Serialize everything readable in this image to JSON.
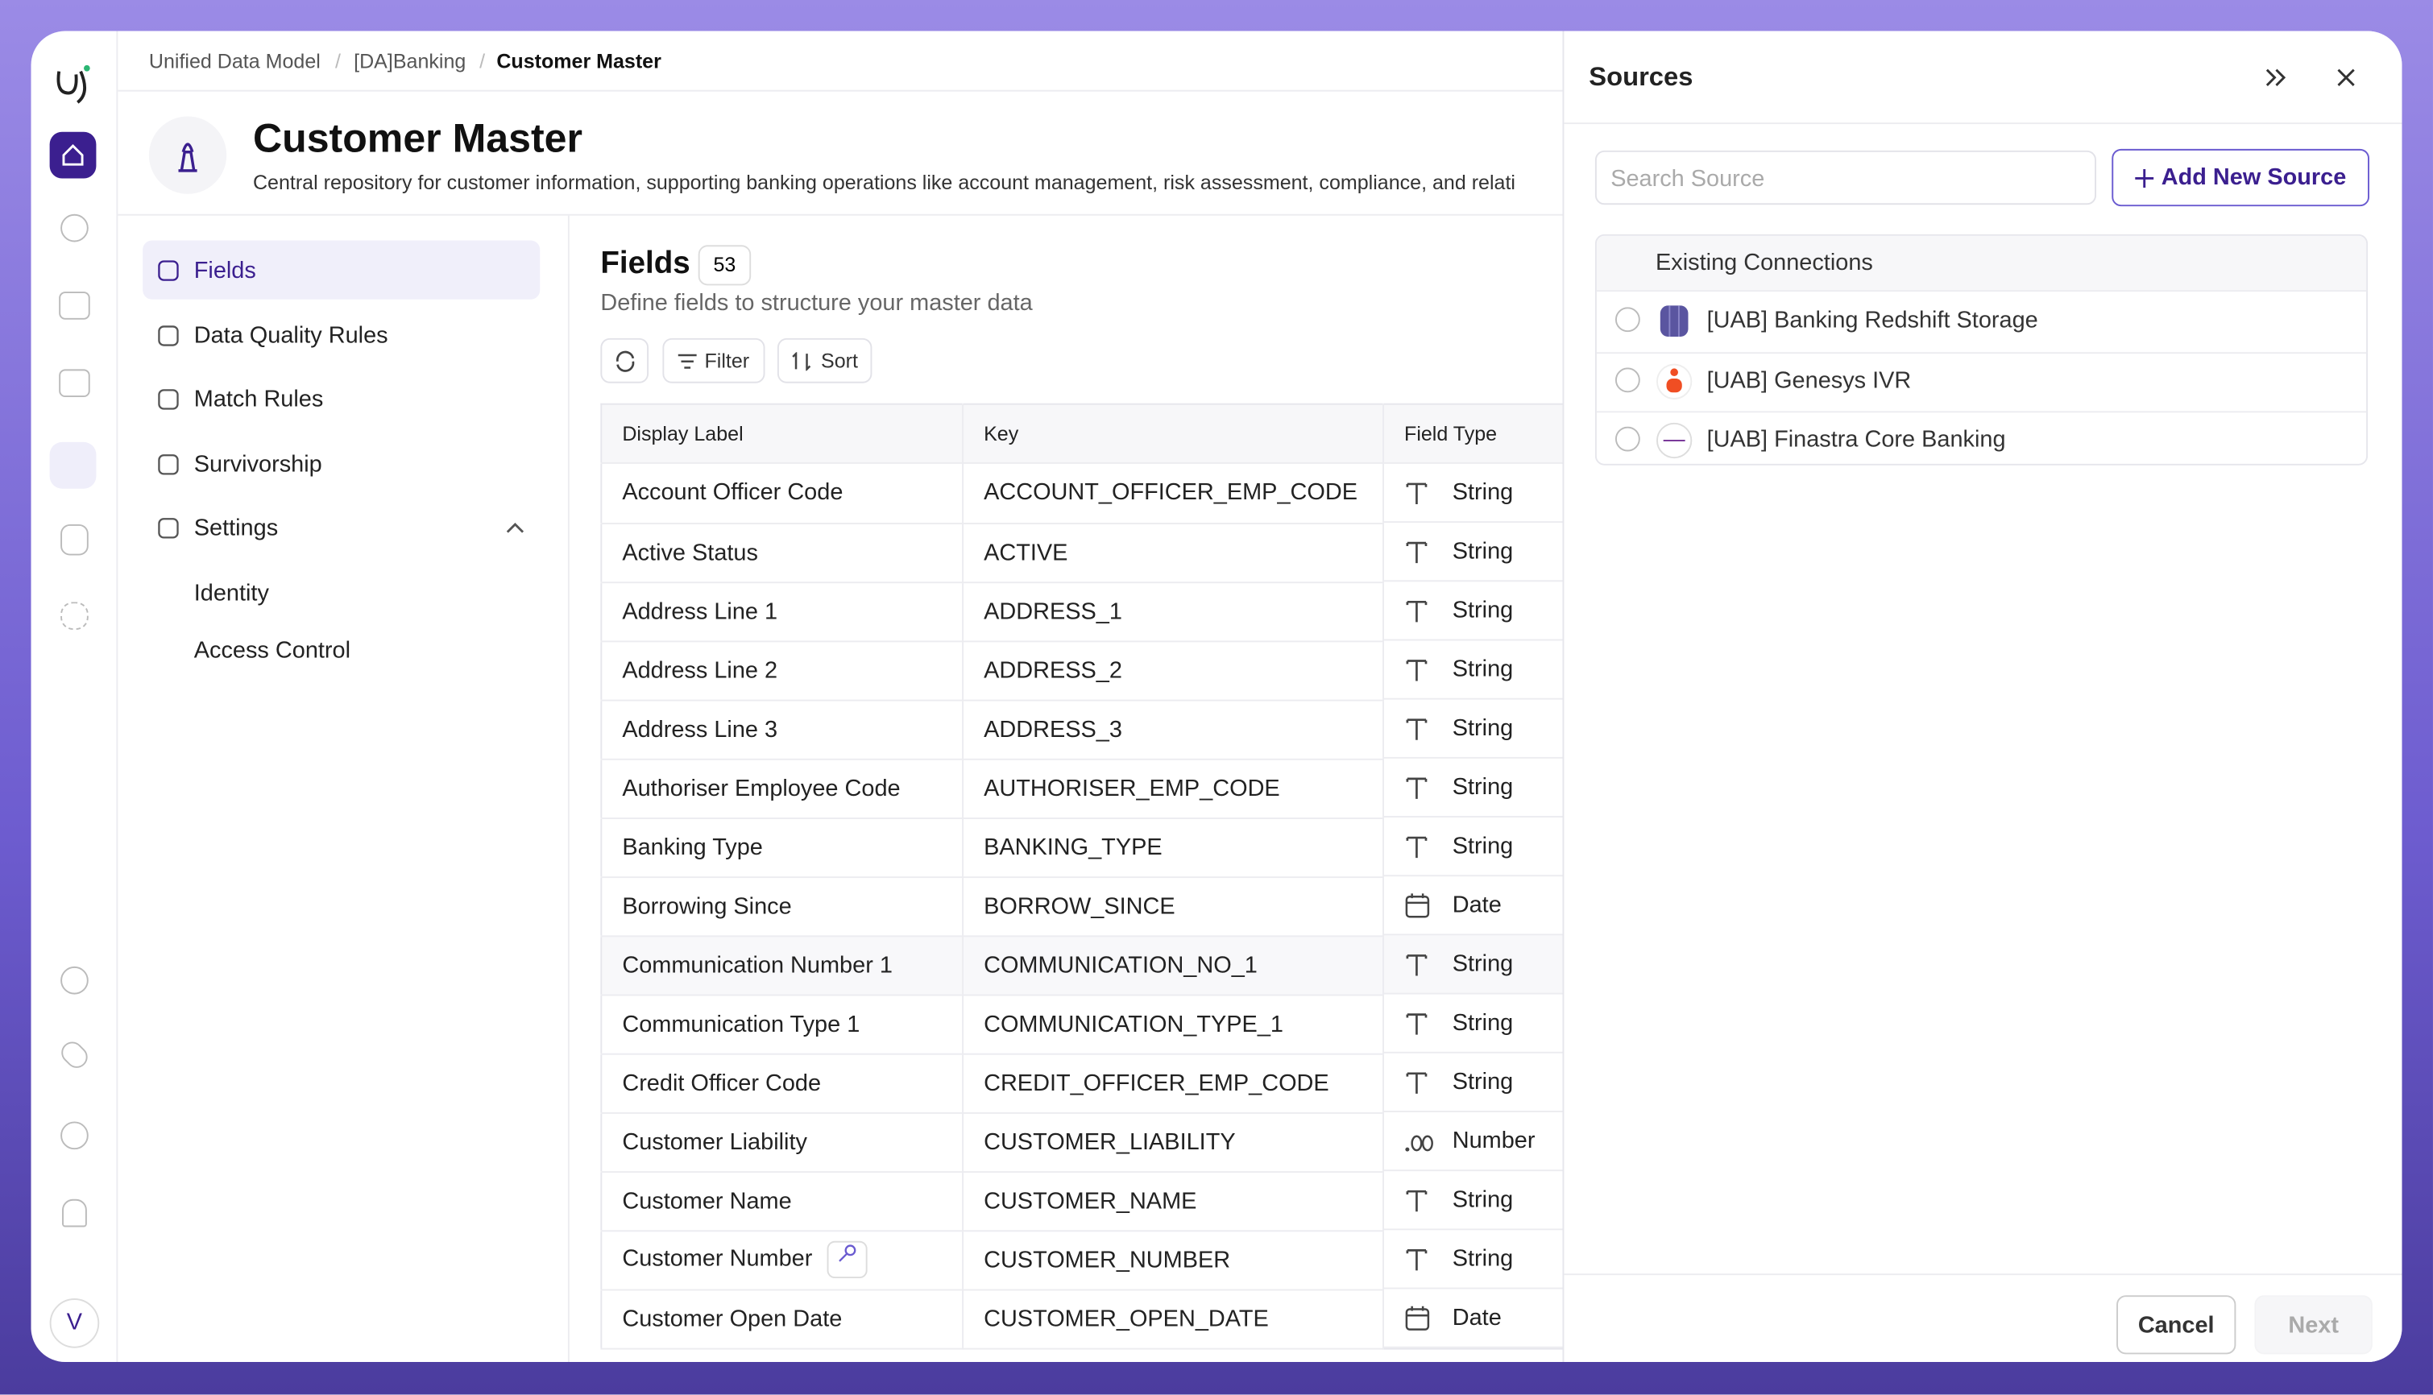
{
  "sidebar": {
    "avatar": "V"
  },
  "breadcrumb": [
    "Unified Data Model",
    "[DA]Banking",
    "Customer Master"
  ],
  "header": {
    "title": "Customer Master",
    "description": "Central repository for customer information, supporting banking operations like account management, risk assessment, compliance, and relati"
  },
  "nav": {
    "items": [
      "Fields",
      "Data Quality Rules",
      "Match Rules",
      "Survivorship",
      "Settings"
    ],
    "settings_children": [
      "Identity",
      "Access Control"
    ]
  },
  "fields": {
    "title": "Fields",
    "count": 53,
    "subtitle": "Define fields to structure your master data",
    "toolbar": [
      "Filter",
      "Sort"
    ],
    "table": {
      "columns": [
        "Display Label",
        "Key",
        "Field Type"
      ],
      "rows": [
        [
          "Account Officer Code",
          "ACCOUNT_OFFICER_EMP_CODE",
          "String"
        ],
        [
          "Active Status",
          "ACTIVE",
          "String"
        ],
        [
          "Address Line 1",
          "ADDRESS_1",
          "String"
        ],
        [
          "Address Line 2",
          "ADDRESS_2",
          "String"
        ],
        [
          "Address Line 3",
          "ADDRESS_3",
          "String"
        ],
        [
          "Authoriser Employee Code",
          "AUTHORISER_EMP_CODE",
          "String"
        ],
        [
          "Banking Type",
          "BANKING_TYPE",
          "String"
        ],
        [
          "Borrowing Since",
          "BORROW_SINCE",
          "Date"
        ],
        [
          "Communication Number 1",
          "COMMUNICATION_NO_1",
          "String"
        ],
        [
          "Communication Type 1",
          "COMMUNICATION_TYPE_1",
          "String"
        ],
        [
          "Credit Officer Code",
          "CREDIT_OFFICER_EMP_CODE",
          "String"
        ],
        [
          "Customer Liability",
          "CUSTOMER_LIABILITY",
          "Number"
        ],
        [
          "Customer Name",
          "CUSTOMER_NAME",
          "String"
        ],
        [
          "Customer Number",
          "CUSTOMER_NUMBER",
          "String"
        ],
        [
          "Customer Open Date",
          "CUSTOMER_OPEN_DATE",
          "Date"
        ]
      ]
    }
  },
  "sources": {
    "title": "Sources",
    "search_placeholder": "Search Source",
    "add_button": "Add New Source",
    "section": "Existing Connections",
    "connections": [
      "[UAB] Banking Redshift Storage",
      "[UAB] Genesys IVR",
      "[UAB] Finastra Core Banking"
    ],
    "cancel": "Cancel",
    "next": "Next"
  }
}
